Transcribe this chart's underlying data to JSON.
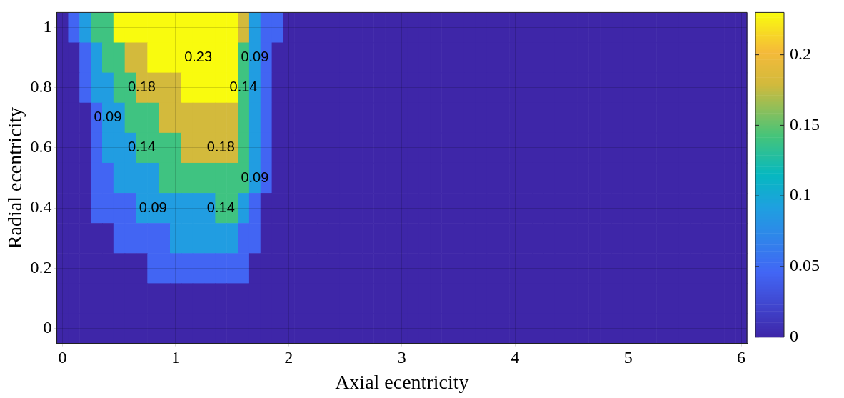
{
  "chart_data": {
    "type": "heatmap",
    "xlabel": "Axial ecentricity",
    "ylabel": "Radial ecentricity",
    "categories": [
      "0",
      null,
      null,
      null,
      null,
      null,
      null,
      null,
      null,
      null,
      "1",
      null,
      null,
      null,
      null,
      null,
      null,
      null,
      null,
      null,
      "2",
      null,
      null,
      null,
      null,
      null,
      null,
      null,
      null,
      null,
      "3",
      null,
      null,
      null,
      null,
      null,
      null,
      null,
      null,
      null,
      "4",
      null,
      null,
      null,
      null,
      null,
      null,
      null,
      null,
      null,
      "5",
      null,
      null,
      null,
      null,
      null,
      null,
      null,
      null,
      null,
      "6"
    ],
    "y_categories": [
      "1",
      null,
      "0.8",
      null,
      "0.6",
      null,
      "0.4",
      null,
      "0.2",
      null,
      "0"
    ],
    "clim": [
      0,
      0.23
    ],
    "cticks": [
      0,
      0.05,
      0.1,
      0.15,
      0.2
    ],
    "grid": true,
    "cells": [
      [
        0,
        0.045,
        0.09,
        0.14,
        0.14,
        0.23,
        0.23,
        0.23,
        0.23,
        0.23,
        0.23,
        0.23,
        0.23,
        0.23,
        0.23,
        0.23,
        0.18,
        0.09,
        0.045,
        0.045,
        0,
        0,
        0,
        0,
        0,
        0,
        0,
        0,
        0,
        0,
        0,
        0,
        0,
        0,
        0,
        0,
        0,
        0,
        0,
        0,
        0,
        0,
        0,
        0,
        0,
        0,
        0,
        0,
        0,
        0,
        0,
        0,
        0,
        0,
        0,
        0,
        0,
        0,
        0,
        0,
        0
      ],
      [
        0,
        0,
        0.045,
        0.09,
        0.14,
        0.14,
        0.18,
        0.18,
        0.23,
        0.23,
        0.23,
        0.23,
        0.23,
        0.23,
        0.23,
        0.23,
        0.14,
        0.09,
        0.045,
        0,
        0,
        0,
        0,
        0,
        0,
        0,
        0,
        0,
        0,
        0,
        0,
        0,
        0,
        0,
        0,
        0,
        0,
        0,
        0,
        0,
        0,
        0,
        0,
        0,
        0,
        0,
        0,
        0,
        0,
        0,
        0,
        0,
        0,
        0,
        0,
        0,
        0,
        0,
        0,
        0,
        0
      ],
      [
        0,
        0,
        0.045,
        0.09,
        0.09,
        0.14,
        0.14,
        0.18,
        0.18,
        0.18,
        0.18,
        0.23,
        0.23,
        0.23,
        0.23,
        0.23,
        0.14,
        0.09,
        0.045,
        0,
        0,
        0,
        0,
        0,
        0,
        0,
        0,
        0,
        0,
        0,
        0,
        0,
        0,
        0,
        0,
        0,
        0,
        0,
        0,
        0,
        0,
        0,
        0,
        0,
        0,
        0,
        0,
        0,
        0,
        0,
        0,
        0,
        0,
        0,
        0,
        0,
        0,
        0,
        0,
        0,
        0
      ],
      [
        0,
        0,
        0,
        0.045,
        0.09,
        0.09,
        0.14,
        0.14,
        0.14,
        0.18,
        0.18,
        0.18,
        0.18,
        0.18,
        0.18,
        0.18,
        0.14,
        0.09,
        0.045,
        0,
        0,
        0,
        0,
        0,
        0,
        0,
        0,
        0,
        0,
        0,
        0,
        0,
        0,
        0,
        0,
        0,
        0,
        0,
        0,
        0,
        0,
        0,
        0,
        0,
        0,
        0,
        0,
        0,
        0,
        0,
        0,
        0,
        0,
        0,
        0,
        0,
        0,
        0,
        0,
        0,
        0
      ],
      [
        0,
        0,
        0,
        0.045,
        0.09,
        0.09,
        0.09,
        0.14,
        0.14,
        0.14,
        0.14,
        0.18,
        0.18,
        0.18,
        0.18,
        0.18,
        0.14,
        0.09,
        0.045,
        0,
        0,
        0,
        0,
        0,
        0,
        0,
        0,
        0,
        0,
        0,
        0,
        0,
        0,
        0,
        0,
        0,
        0,
        0,
        0,
        0,
        0,
        0,
        0,
        0,
        0,
        0,
        0,
        0,
        0,
        0,
        0,
        0,
        0,
        0,
        0,
        0,
        0,
        0,
        0,
        0,
        0
      ],
      [
        0,
        0,
        0,
        0.045,
        0.045,
        0.09,
        0.09,
        0.09,
        0.09,
        0.14,
        0.14,
        0.14,
        0.14,
        0.14,
        0.14,
        0.14,
        0.14,
        0.09,
        0.045,
        0,
        0,
        0,
        0,
        0,
        0,
        0,
        0,
        0,
        0,
        0,
        0,
        0,
        0,
        0,
        0,
        0,
        0,
        0,
        0,
        0,
        0,
        0,
        0,
        0,
        0,
        0,
        0,
        0,
        0,
        0,
        0,
        0,
        0,
        0,
        0,
        0,
        0,
        0,
        0,
        0,
        0
      ],
      [
        0,
        0,
        0,
        0.045,
        0.045,
        0.045,
        0.045,
        0.09,
        0.09,
        0.09,
        0.09,
        0.09,
        0.09,
        0.09,
        0.14,
        0.14,
        0.09,
        0.045,
        0,
        0,
        0,
        0,
        0,
        0,
        0,
        0,
        0,
        0,
        0,
        0,
        0,
        0,
        0,
        0,
        0,
        0,
        0,
        0,
        0,
        0,
        0,
        0,
        0,
        0,
        0,
        0,
        0,
        0,
        0,
        0,
        0,
        0,
        0,
        0,
        0,
        0,
        0,
        0,
        0,
        0,
        0
      ],
      [
        0,
        0,
        0,
        0,
        0,
        0.045,
        0.045,
        0.045,
        0.045,
        0.045,
        0.09,
        0.09,
        0.09,
        0.09,
        0.09,
        0.09,
        0.045,
        0.045,
        0,
        0,
        0,
        0,
        0,
        0,
        0,
        0,
        0,
        0,
        0,
        0,
        0,
        0,
        0,
        0,
        0,
        0,
        0,
        0,
        0,
        0,
        0,
        0,
        0,
        0,
        0,
        0,
        0,
        0,
        0,
        0,
        0,
        0,
        0,
        0,
        0,
        0,
        0,
        0,
        0,
        0,
        0
      ],
      [
        0,
        0,
        0,
        0,
        0,
        0,
        0,
        0,
        0.045,
        0.045,
        0.045,
        0.045,
        0.045,
        0.045,
        0.045,
        0.045,
        0.045,
        0,
        0,
        0,
        0,
        0,
        0,
        0,
        0,
        0,
        0,
        0,
        0,
        0,
        0,
        0,
        0,
        0,
        0,
        0,
        0,
        0,
        0,
        0,
        0,
        0,
        0,
        0,
        0,
        0,
        0,
        0,
        0,
        0,
        0,
        0,
        0,
        0,
        0,
        0,
        0,
        0,
        0,
        0,
        0
      ],
      [
        0,
        0,
        0,
        0,
        0,
        0,
        0,
        0,
        0,
        0,
        0,
        0,
        0,
        0,
        0,
        0,
        0,
        0,
        0,
        0,
        0,
        0,
        0,
        0,
        0,
        0,
        0,
        0,
        0,
        0,
        0,
        0,
        0,
        0,
        0,
        0,
        0,
        0,
        0,
        0,
        0,
        0,
        0,
        0,
        0,
        0,
        0,
        0,
        0,
        0,
        0,
        0,
        0,
        0,
        0,
        0,
        0,
        0,
        0,
        0,
        0
      ],
      [
        0,
        0,
        0,
        0,
        0,
        0,
        0,
        0,
        0,
        0,
        0,
        0,
        0,
        0,
        0,
        0,
        0,
        0,
        0,
        0,
        0,
        0,
        0,
        0,
        0,
        0,
        0,
        0,
        0,
        0,
        0,
        0,
        0,
        0,
        0,
        0,
        0,
        0,
        0,
        0,
        0,
        0,
        0,
        0,
        0,
        0,
        0,
        0,
        0,
        0,
        0,
        0,
        0,
        0,
        0,
        0,
        0,
        0,
        0,
        0,
        0
      ]
    ],
    "cell_labels": [
      [
        null,
        null,
        null,
        null,
        null,
        null,
        null,
        null,
        null,
        null,
        null,
        null,
        null,
        null,
        null,
        null,
        null,
        null,
        null,
        null,
        null,
        null,
        null,
        null,
        null,
        null,
        null,
        null,
        null,
        null,
        null,
        null,
        null,
        null,
        null,
        null,
        null,
        null,
        null,
        null,
        null,
        null,
        null,
        null,
        null,
        null,
        null,
        null,
        null,
        null,
        null,
        null,
        null,
        null,
        null,
        null,
        null,
        null,
        null,
        null,
        null
      ],
      [
        null,
        null,
        null,
        null,
        null,
        null,
        null,
        null,
        null,
        null,
        null,
        null,
        "0.23",
        null,
        null,
        null,
        null,
        "0.09",
        null,
        null,
        null,
        null,
        null,
        null,
        null,
        null,
        null,
        null,
        null,
        null,
        null,
        null,
        null,
        null,
        null,
        null,
        null,
        null,
        null,
        null,
        null,
        null,
        null,
        null,
        null,
        null,
        null,
        null,
        null,
        null,
        null,
        null,
        null,
        null,
        null,
        null,
        null,
        null,
        null,
        null,
        null
      ],
      [
        null,
        null,
        null,
        null,
        null,
        null,
        null,
        "0.18",
        null,
        null,
        null,
        null,
        null,
        null,
        null,
        null,
        "0.14",
        null,
        null,
        null,
        null,
        null,
        null,
        null,
        null,
        null,
        null,
        null,
        null,
        null,
        null,
        null,
        null,
        null,
        null,
        null,
        null,
        null,
        null,
        null,
        null,
        null,
        null,
        null,
        null,
        null,
        null,
        null,
        null,
        null,
        null,
        null,
        null,
        null,
        null,
        null,
        null,
        null,
        null,
        null,
        null
      ],
      [
        null,
        null,
        null,
        null,
        "0.09",
        null,
        null,
        null,
        null,
        null,
        null,
        null,
        null,
        null,
        null,
        null,
        null,
        null,
        null,
        null,
        null,
        null,
        null,
        null,
        null,
        null,
        null,
        null,
        null,
        null,
        null,
        null,
        null,
        null,
        null,
        null,
        null,
        null,
        null,
        null,
        null,
        null,
        null,
        null,
        null,
        null,
        null,
        null,
        null,
        null,
        null,
        null,
        null,
        null,
        null,
        null,
        null,
        null,
        null,
        null,
        null
      ],
      [
        null,
        null,
        null,
        null,
        null,
        null,
        null,
        "0.14",
        null,
        null,
        null,
        null,
        null,
        null,
        "0.18",
        null,
        null,
        null,
        null,
        null,
        null,
        null,
        null,
        null,
        null,
        null,
        null,
        null,
        null,
        null,
        null,
        null,
        null,
        null,
        null,
        null,
        null,
        null,
        null,
        null,
        null,
        null,
        null,
        null,
        null,
        null,
        null,
        null,
        null,
        null,
        null,
        null,
        null,
        null,
        null,
        null,
        null,
        null,
        null,
        null,
        null
      ],
      [
        null,
        null,
        null,
        null,
        null,
        null,
        null,
        null,
        null,
        null,
        null,
        null,
        null,
        null,
        null,
        null,
        null,
        "0.09",
        null,
        null,
        null,
        null,
        null,
        null,
        null,
        null,
        null,
        null,
        null,
        null,
        null,
        null,
        null,
        null,
        null,
        null,
        null,
        null,
        null,
        null,
        null,
        null,
        null,
        null,
        null,
        null,
        null,
        null,
        null,
        null,
        null,
        null,
        null,
        null,
        null,
        null,
        null,
        null,
        null,
        null,
        null
      ],
      [
        null,
        null,
        null,
        null,
        null,
        null,
        null,
        null,
        "0.09",
        null,
        null,
        null,
        null,
        null,
        "0.14",
        null,
        null,
        null,
        null,
        null,
        null,
        null,
        null,
        null,
        null,
        null,
        null,
        null,
        null,
        null,
        null,
        null,
        null,
        null,
        null,
        null,
        null,
        null,
        null,
        null,
        null,
        null,
        null,
        null,
        null,
        null,
        null,
        null,
        null,
        null,
        null,
        null,
        null,
        null,
        null,
        null,
        null,
        null,
        null,
        null,
        null
      ],
      [
        null,
        null,
        null,
        null,
        null,
        null,
        null,
        null,
        null,
        null,
        null,
        null,
        null,
        null,
        null,
        null,
        null,
        null,
        null,
        null,
        null,
        null,
        null,
        null,
        null,
        null,
        null,
        null,
        null,
        null,
        null,
        null,
        null,
        null,
        null,
        null,
        null,
        null,
        null,
        null,
        null,
        null,
        null,
        null,
        null,
        null,
        null,
        null,
        null,
        null,
        null,
        null,
        null,
        null,
        null,
        null,
        null,
        null,
        null,
        null,
        null
      ],
      [
        null,
        null,
        null,
        null,
        null,
        null,
        null,
        null,
        null,
        null,
        null,
        null,
        null,
        null,
        null,
        null,
        null,
        null,
        null,
        null,
        null,
        null,
        null,
        null,
        null,
        null,
        null,
        null,
        null,
        null,
        null,
        null,
        null,
        null,
        null,
        null,
        null,
        null,
        null,
        null,
        null,
        null,
        null,
        null,
        null,
        null,
        null,
        null,
        null,
        null,
        null,
        null,
        null,
        null,
        null,
        null,
        null,
        null,
        null,
        null,
        null
      ],
      [
        null,
        null,
        null,
        null,
        null,
        null,
        null,
        null,
        null,
        null,
        null,
        null,
        null,
        null,
        null,
        null,
        null,
        null,
        null,
        null,
        null,
        null,
        null,
        null,
        null,
        null,
        null,
        null,
        null,
        null,
        null,
        null,
        null,
        null,
        null,
        null,
        null,
        null,
        null,
        null,
        null,
        null,
        null,
        null,
        null,
        null,
        null,
        null,
        null,
        null,
        null,
        null,
        null,
        null,
        null,
        null,
        null,
        null,
        null,
        null,
        null
      ],
      [
        null,
        null,
        null,
        null,
        null,
        null,
        null,
        null,
        null,
        null,
        null,
        null,
        null,
        null,
        null,
        null,
        null,
        null,
        null,
        null,
        null,
        null,
        null,
        null,
        null,
        null,
        null,
        null,
        null,
        null,
        null,
        null,
        null,
        null,
        null,
        null,
        null,
        null,
        null,
        null,
        null,
        null,
        null,
        null,
        null,
        null,
        null,
        null,
        null,
        null,
        null,
        null,
        null,
        null,
        null,
        null,
        null,
        null,
        null,
        null,
        null
      ]
    ]
  }
}
